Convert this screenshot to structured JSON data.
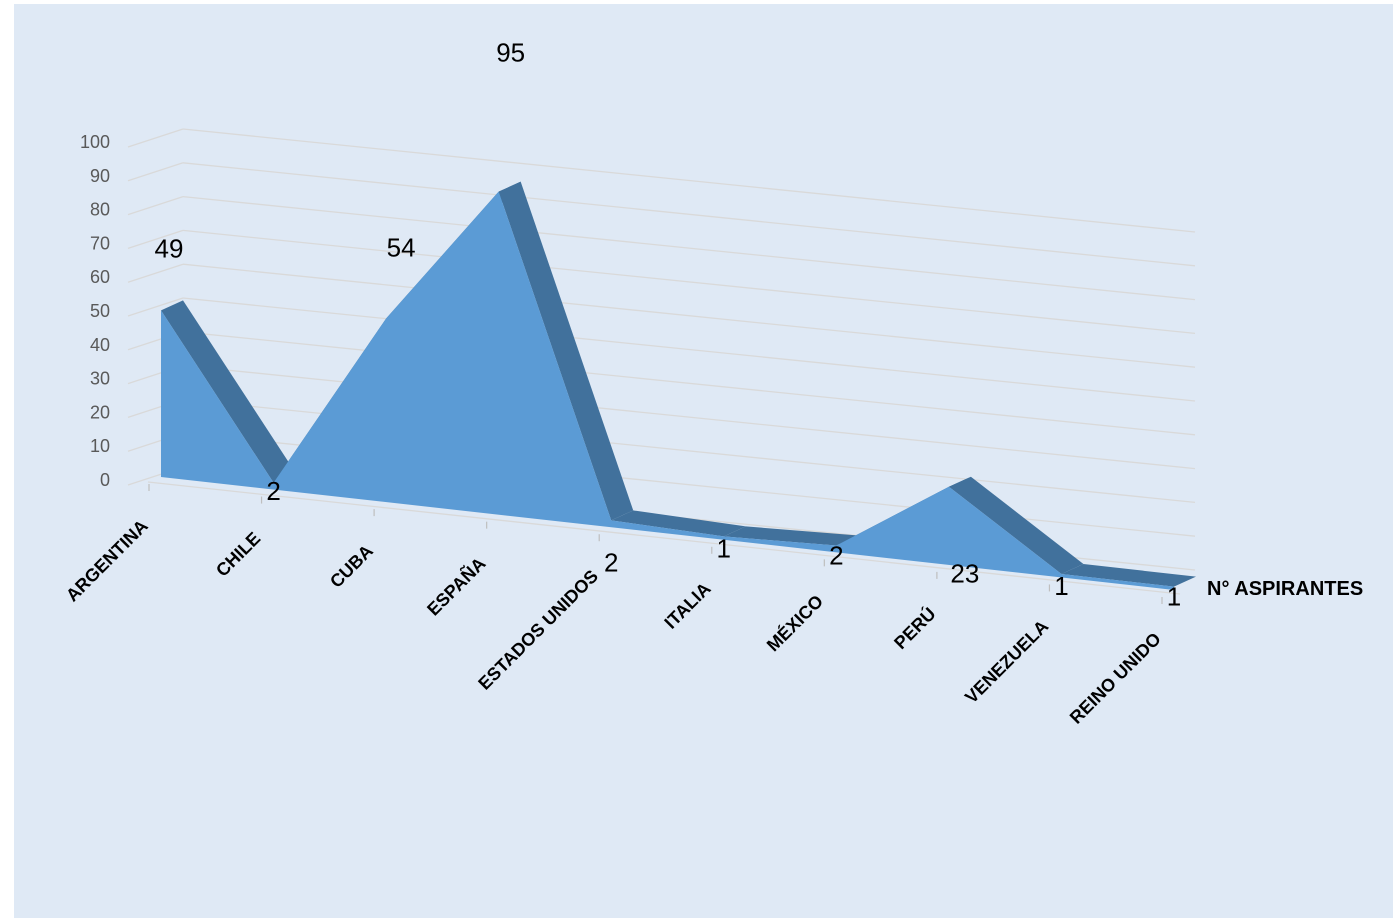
{
  "chart_data": {
    "type": "area",
    "style": "3d-area",
    "categories": [
      "ARGENTINA",
      "CHILE",
      "CUBA",
      "ESPAÑA",
      "ESTADOS UNIDOS",
      "ITALIA",
      "MÉXICO",
      "PERÚ",
      "VENEZUELA",
      "REINO UNIDO"
    ],
    "series": [
      {
        "name": "N° ASPIRANTES",
        "values": [
          49,
          2,
          54,
          95,
          2,
          1,
          2,
          23,
          1,
          1
        ]
      }
    ],
    "ylim": [
      0,
      100
    ],
    "yticks": [
      0,
      10,
      20,
      30,
      40,
      50,
      60,
      70,
      80,
      90,
      100
    ],
    "grid": true,
    "data_labels": true,
    "colors": {
      "face": "#5b9bd5",
      "top": "#41719c",
      "grid": "#d9d9d9",
      "background": "#dfe9f5"
    }
  }
}
